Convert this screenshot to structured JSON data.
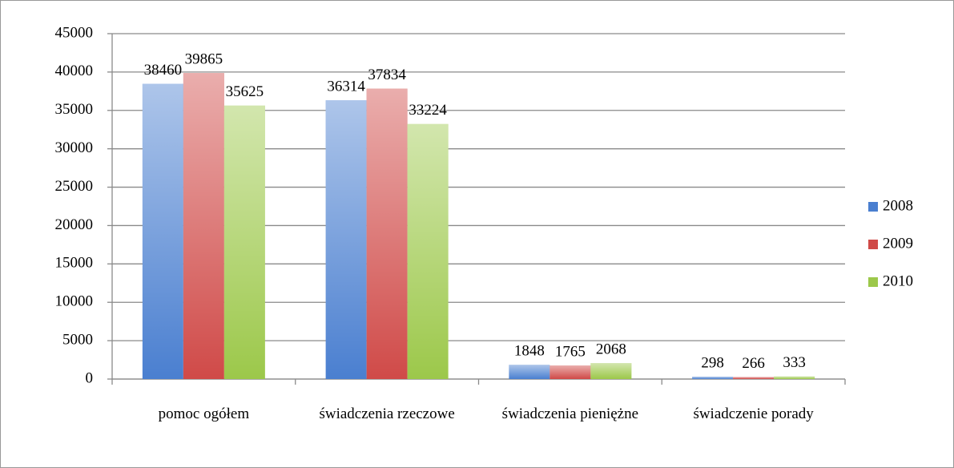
{
  "chart_data": {
    "type": "bar",
    "categories": [
      "pomoc ogółem",
      "świadczenia rzeczowe",
      "świadczenia pieniężne",
      "świadczenie porady"
    ],
    "series": [
      {
        "name": "2008",
        "color": "#4a7fd0",
        "values": [
          38460,
          36314,
          1848,
          298
        ]
      },
      {
        "name": "2009",
        "color": "#d04a48",
        "values": [
          39865,
          37834,
          1765,
          266
        ]
      },
      {
        "name": "2010",
        "color": "#9cc84a",
        "values": [
          35625,
          33224,
          2068,
          333
        ]
      }
    ],
    "ylim": [
      0,
      45000
    ],
    "yticks": [
      0,
      5000,
      10000,
      15000,
      20000,
      25000,
      30000,
      35000,
      40000,
      45000
    ],
    "grid": true,
    "legend": "right"
  }
}
